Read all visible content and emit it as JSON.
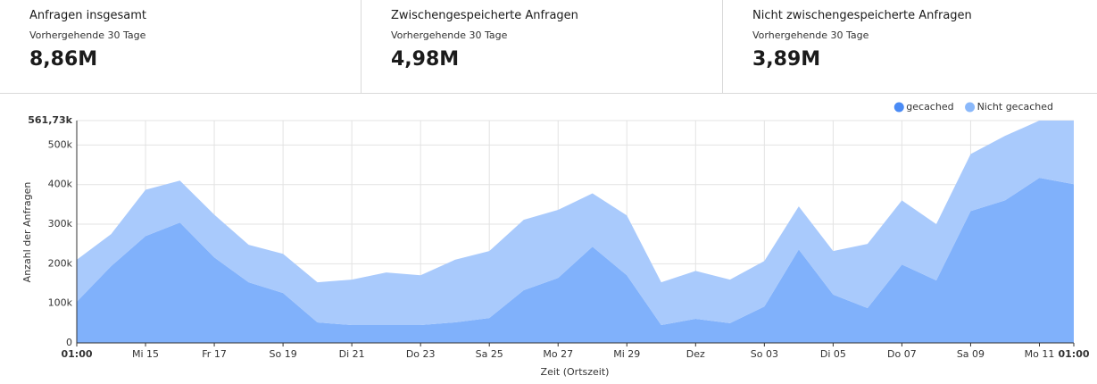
{
  "stats": [
    {
      "title": "Anfragen insgesamt",
      "subtitle": "Vorhergehende 30 Tage",
      "value": "8,86M"
    },
    {
      "title": "Zwischengespeicherte Anfragen",
      "subtitle": "Vorhergehende 30 Tage",
      "value": "4,98M"
    },
    {
      "title": "Nicht zwischengespeicherte Anfragen",
      "subtitle": "Vorhergehende 30 Tage",
      "value": "3,89M"
    }
  ],
  "chart_data": {
    "type": "stacked_area",
    "y_label": "Anzahl der Anfragen",
    "x_label": "Zeit (Ortszeit)",
    "categories": [
      "01:00",
      null,
      "Mi 15",
      null,
      "Fr 17",
      null,
      "So 19",
      null,
      "Di 21",
      null,
      "Do 23",
      null,
      "Sa 25",
      null,
      "Mo 27",
      null,
      "Mi 29",
      null,
      "Dez",
      null,
      "So 03",
      null,
      "Di 05",
      null,
      "Do 07",
      null,
      "Sa 09",
      null,
      "Mo 11",
      "01:00"
    ],
    "series": [
      {
        "name": "gecached",
        "color": "#80b1fb",
        "legend_color": "#4a8bf5",
        "values": [
          104000,
          194000,
          270000,
          304000,
          216000,
          153000,
          126000,
          52000,
          45000,
          45000,
          45000,
          52000,
          63000,
          133000,
          164000,
          243000,
          171000,
          45000,
          61000,
          50000,
          92000,
          236000,
          122000,
          88000,
          198000,
          158000,
          333000,
          360000,
          417000,
          401000
        ]
      },
      {
        "name": "Nicht gecached",
        "color": "#a9cafc",
        "legend_color": "#8ab8fa",
        "values": [
          106000,
          81000,
          117000,
          106000,
          108000,
          95000,
          99000,
          101000,
          115000,
          133000,
          126000,
          158000,
          169000,
          178000,
          172000,
          135000,
          151000,
          108000,
          121000,
          110000,
          115000,
          109000,
          110000,
          162000,
          162000,
          142000,
          144000,
          163000,
          144730,
          160730
        ]
      }
    ],
    "ylim": [
      0,
      561730
    ],
    "yticks": [
      0,
      {
        "value": 100000,
        "label": "100k"
      },
      {
        "value": 200000,
        "label": "200k"
      },
      {
        "value": 300000,
        "label": "300k"
      },
      {
        "value": 400000,
        "label": "400k"
      },
      {
        "value": 500000,
        "label": "500k"
      },
      {
        "value": 561730,
        "label": "561,73k"
      }
    ],
    "grid": true,
    "legend": "top-right"
  }
}
